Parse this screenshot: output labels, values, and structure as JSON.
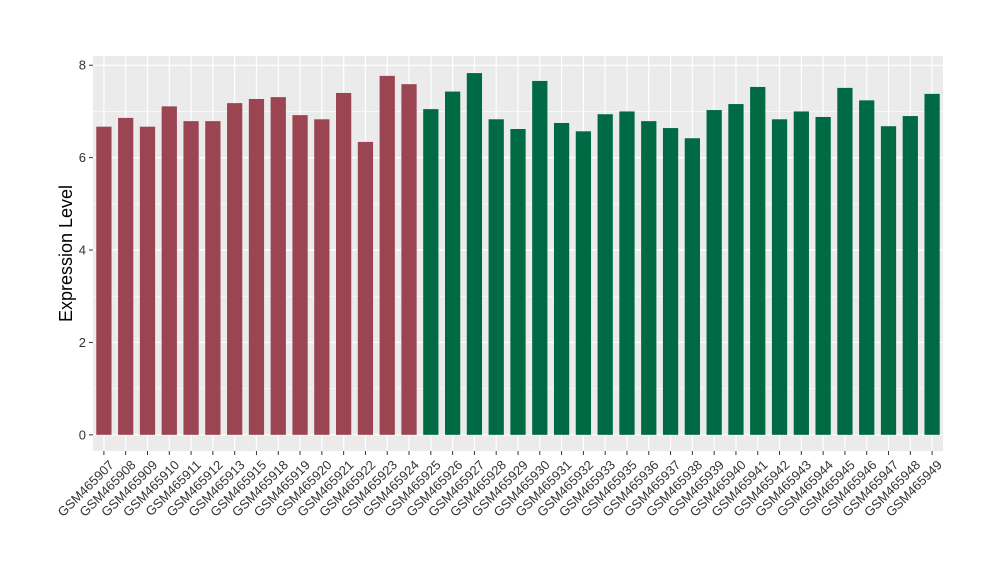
{
  "chart_data": {
    "type": "bar",
    "title": "",
    "xlabel": "",
    "ylabel": "Expression Level",
    "ylim": [
      -0.35,
      8.2
    ],
    "yticks": [
      0,
      2,
      4,
      6,
      8
    ],
    "grid": true,
    "legend": "none",
    "colors": {
      "group1": "#9B4552",
      "group2": "#006A45",
      "panel": "#EBEBEB",
      "grid": "#FFFFFF"
    },
    "categories": [
      "GSM465907",
      "GSM465908",
      "GSM465909",
      "GSM465910",
      "GSM465911",
      "GSM465912",
      "GSM465913",
      "GSM465915",
      "GSM465918",
      "GSM465919",
      "GSM465920",
      "GSM465921",
      "GSM465922",
      "GSM465923",
      "GSM465924",
      "GSM465925",
      "GSM465926",
      "GSM465927",
      "GSM465928",
      "GSM465929",
      "GSM465930",
      "GSM465931",
      "GSM465932",
      "GSM465933",
      "GSM465935",
      "GSM465936",
      "GSM465937",
      "GSM465938",
      "GSM465939",
      "GSM465940",
      "GSM465941",
      "GSM465942",
      "GSM465943",
      "GSM465944",
      "GSM465945",
      "GSM465946",
      "GSM465947",
      "GSM465948",
      "GSM465949"
    ],
    "values": [
      6.67,
      6.86,
      6.67,
      7.11,
      6.79,
      6.79,
      7.18,
      7.27,
      7.31,
      6.92,
      6.83,
      7.4,
      6.34,
      7.77,
      7.59,
      7.05,
      7.43,
      7.83,
      6.83,
      6.62,
      7.66,
      6.75,
      6.57,
      6.94,
      7.0,
      6.79,
      6.64,
      6.42,
      7.03,
      7.16,
      7.53,
      6.83,
      7.0,
      6.88,
      7.51,
      7.24,
      6.68,
      6.9,
      7.38
    ],
    "groups": [
      "group1",
      "group1",
      "group1",
      "group1",
      "group1",
      "group1",
      "group1",
      "group1",
      "group1",
      "group1",
      "group1",
      "group1",
      "group1",
      "group1",
      "group1",
      "group2",
      "group2",
      "group2",
      "group2",
      "group2",
      "group2",
      "group2",
      "group2",
      "group2",
      "group2",
      "group2",
      "group2",
      "group2",
      "group2",
      "group2",
      "group2",
      "group2",
      "group2",
      "group2",
      "group2",
      "group2",
      "group2",
      "group2",
      "group2"
    ]
  }
}
